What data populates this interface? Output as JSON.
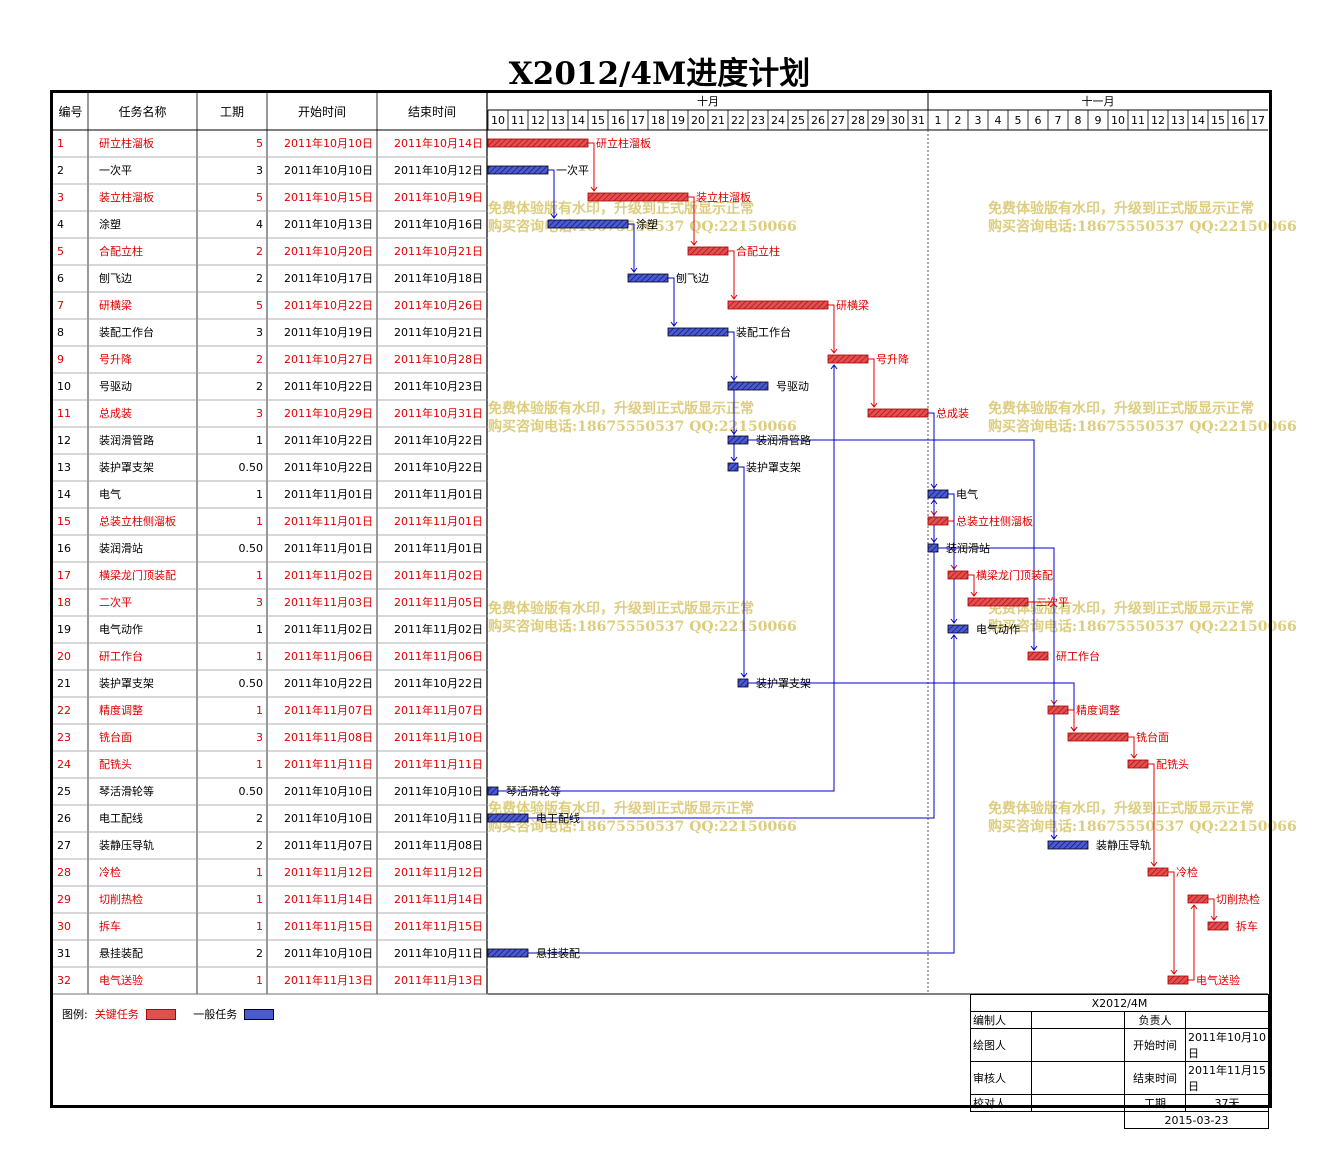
{
  "title": "X2012/4M进度计划",
  "headers": {
    "id": "编号",
    "name": "任务名称",
    "duration": "工期",
    "start": "开始时间",
    "end": "结束时间"
  },
  "months": [
    {
      "label": "十月",
      "days": [
        10,
        11,
        12,
        13,
        14,
        15,
        16,
        17,
        18,
        19,
        20,
        21,
        22,
        23,
        24,
        25,
        26,
        27,
        28,
        29,
        30,
        31
      ]
    },
    {
      "label": "十一月",
      "days": [
        1,
        2,
        3,
        4,
        5,
        6,
        7,
        8,
        9,
        10,
        11,
        12,
        13,
        14,
        15,
        16,
        17
      ]
    }
  ],
  "watermark": {
    "line1": "免费体验版有水印，升级到正式版显示正常",
    "line2": "购买咨询电话:18675550537 QQ:22150066"
  },
  "colors": {
    "critical": "#e00000",
    "critical_fill": "#e05050",
    "normal_fill": "#4a5ad0",
    "link_normal": "#0000cc"
  },
  "chart_data": {
    "type": "gantt",
    "x_start": "2011-10-10",
    "tasks": [
      {
        "id": "1",
        "name": "研立柱溜板",
        "duration": "5",
        "start": "2011年10月10日",
        "end": "2011年10月14日",
        "s": 0,
        "d": 5,
        "critical": true
      },
      {
        "id": "2",
        "name": "一次平",
        "duration": "3",
        "start": "2011年10月10日",
        "end": "2011年10月12日",
        "s": 0,
        "d": 3,
        "critical": false
      },
      {
        "id": "3",
        "name": "装立柱溜板",
        "duration": "5",
        "start": "2011年10月15日",
        "end": "2011年10月19日",
        "s": 5,
        "d": 5,
        "critical": true
      },
      {
        "id": "4",
        "name": "涂塑",
        "duration": "4",
        "start": "2011年10月13日",
        "end": "2011年10月16日",
        "s": 3,
        "d": 4,
        "critical": false
      },
      {
        "id": "5",
        "name": "合配立柱",
        "duration": "2",
        "start": "2011年10月20日",
        "end": "2011年10月21日",
        "s": 10,
        "d": 2,
        "critical": true
      },
      {
        "id": "6",
        "name": "刨飞边",
        "duration": "2",
        "start": "2011年10月17日",
        "end": "2011年10月18日",
        "s": 7,
        "d": 2,
        "critical": false
      },
      {
        "id": "7",
        "name": "研横梁",
        "duration": "5",
        "start": "2011年10月22日",
        "end": "2011年10月26日",
        "s": 12,
        "d": 5,
        "critical": true
      },
      {
        "id": "8",
        "name": "装配工作台",
        "duration": "3",
        "start": "2011年10月19日",
        "end": "2011年10月21日",
        "s": 9,
        "d": 3,
        "critical": false
      },
      {
        "id": "9",
        "name": "号升降",
        "duration": "2",
        "start": "2011年10月27日",
        "end": "2011年10月28日",
        "s": 17,
        "d": 2,
        "critical": true
      },
      {
        "id": "10",
        "name": "号驱动",
        "duration": "2",
        "start": "2011年10月22日",
        "end": "2011年10月23日",
        "s": 12,
        "d": 2,
        "critical": false
      },
      {
        "id": "11",
        "name": "总成装",
        "duration": "3",
        "start": "2011年10月29日",
        "end": "2011年10月31日",
        "s": 19,
        "d": 3,
        "critical": true
      },
      {
        "id": "12",
        "name": "装润滑管路",
        "duration": "1",
        "start": "2011年10月22日",
        "end": "2011年10月22日",
        "s": 12,
        "d": 1,
        "critical": false
      },
      {
        "id": "13",
        "name": "装护罩支架",
        "duration": "0.50",
        "start": "2011年10月22日",
        "end": "2011年10月22日",
        "s": 12,
        "d": 0.5,
        "critical": false
      },
      {
        "id": "14",
        "name": "电气",
        "duration": "1",
        "start": "2011年11月01日",
        "end": "2011年11月01日",
        "s": 22,
        "d": 1,
        "critical": false
      },
      {
        "id": "15",
        "name": "总装立柱侧溜板",
        "duration": "1",
        "start": "2011年11月01日",
        "end": "2011年11月01日",
        "s": 22,
        "d": 1,
        "critical": true
      },
      {
        "id": "16",
        "name": "装润滑站",
        "duration": "0.50",
        "start": "2011年11月01日",
        "end": "2011年11月01日",
        "s": 22,
        "d": 0.5,
        "critical": false
      },
      {
        "id": "17",
        "name": "横梁龙门顶装配",
        "duration": "1",
        "start": "2011年11月02日",
        "end": "2011年11月02日",
        "s": 23,
        "d": 1,
        "critical": true
      },
      {
        "id": "18",
        "name": "二次平",
        "duration": "3",
        "start": "2011年11月03日",
        "end": "2011年11月05日",
        "s": 24,
        "d": 3,
        "critical": true
      },
      {
        "id": "19",
        "name": "电气动作",
        "duration": "1",
        "start": "2011年11月02日",
        "end": "2011年11月02日",
        "s": 23,
        "d": 1,
        "critical": false
      },
      {
        "id": "20",
        "name": "研工作台",
        "duration": "1",
        "start": "2011年11月06日",
        "end": "2011年11月06日",
        "s": 27,
        "d": 1,
        "critical": true
      },
      {
        "id": "21",
        "name": "装护罩支架",
        "duration": "0.50",
        "start": "2011年10月22日",
        "end": "2011年10月22日",
        "s": 12.5,
        "d": 0.5,
        "critical": false
      },
      {
        "id": "22",
        "name": "精度调整",
        "duration": "1",
        "start": "2011年11月07日",
        "end": "2011年11月07日",
        "s": 28,
        "d": 1,
        "critical": true
      },
      {
        "id": "23",
        "name": "铣台面",
        "duration": "3",
        "start": "2011年11月08日",
        "end": "2011年11月10日",
        "s": 29,
        "d": 3,
        "critical": true
      },
      {
        "id": "24",
        "name": "配铣头",
        "duration": "1",
        "start": "2011年11月11日",
        "end": "2011年11月11日",
        "s": 32,
        "d": 1,
        "critical": true
      },
      {
        "id": "25",
        "name": "琴活滑轮等",
        "duration": "0.50",
        "start": "2011年10月10日",
        "end": "2011年10月10日",
        "s": 0,
        "d": 0.5,
        "critical": false
      },
      {
        "id": "26",
        "name": "电工配线",
        "duration": "2",
        "start": "2011年10月10日",
        "end": "2011年10月11日",
        "s": 0,
        "d": 2,
        "critical": false
      },
      {
        "id": "27",
        "name": "装静压导轨",
        "duration": "2",
        "start": "2011年11月07日",
        "end": "2011年11月08日",
        "s": 28,
        "d": 2,
        "critical": false
      },
      {
        "id": "28",
        "name": "冷检",
        "duration": "1",
        "start": "2011年11月12日",
        "end": "2011年11月12日",
        "s": 33,
        "d": 1,
        "critical": true
      },
      {
        "id": "29",
        "name": "切削热检",
        "duration": "1",
        "start": "2011年11月14日",
        "end": "2011年11月14日",
        "s": 35,
        "d": 1,
        "critical": true
      },
      {
        "id": "30",
        "name": "拆车",
        "duration": "1",
        "start": "2011年11月15日",
        "end": "2011年11月15日",
        "s": 36,
        "d": 1,
        "critical": true
      },
      {
        "id": "31",
        "name": "悬挂装配",
        "duration": "2",
        "start": "2011年10月10日",
        "end": "2011年10月11日",
        "s": 0,
        "d": 2,
        "critical": false
      },
      {
        "id": "32",
        "name": "电气送验",
        "duration": "1",
        "start": "2011年11月13日",
        "end": "2011年11月13日",
        "s": 34,
        "d": 1,
        "critical": true
      }
    ],
    "links": [
      [
        1,
        3
      ],
      [
        2,
        4
      ],
      [
        3,
        5
      ],
      [
        4,
        6
      ],
      [
        5,
        7
      ],
      [
        6,
        8
      ],
      [
        7,
        9
      ],
      [
        8,
        10
      ],
      [
        9,
        11
      ],
      [
        8,
        12
      ],
      [
        8,
        13
      ],
      [
        11,
        14
      ],
      [
        11,
        15
      ],
      [
        11,
        16
      ],
      [
        15,
        17
      ],
      [
        17,
        18
      ],
      [
        14,
        19
      ],
      [
        12,
        20
      ],
      [
        13,
        21
      ],
      [
        18,
        22
      ],
      [
        16,
        27
      ],
      [
        21,
        23
      ],
      [
        22,
        23
      ],
      [
        23,
        24
      ],
      [
        24,
        28
      ],
      [
        28,
        32
      ],
      [
        32,
        29
      ],
      [
        29,
        30
      ],
      [
        25,
        9
      ],
      [
        26,
        14
      ],
      [
        31,
        19
      ]
    ]
  },
  "legend": {
    "label": "图例:",
    "critical": "关键任务",
    "normal": "一般任务"
  },
  "info": {
    "project": "X2012/4M",
    "editor_label": "编制人",
    "editor": "",
    "owner_label": "负责人",
    "owner": "",
    "drawer_label": "绘图人",
    "drawer": "",
    "start_label": "开始时间",
    "start": "2011年10月10日",
    "checker_label": "审核人",
    "checker": "",
    "end_label": "结束时间",
    "end": "2011年11月15日",
    "proof_label": "校对人",
    "proof": "",
    "duration_label": "工期",
    "duration": "37天",
    "date": "2015-03-23"
  }
}
